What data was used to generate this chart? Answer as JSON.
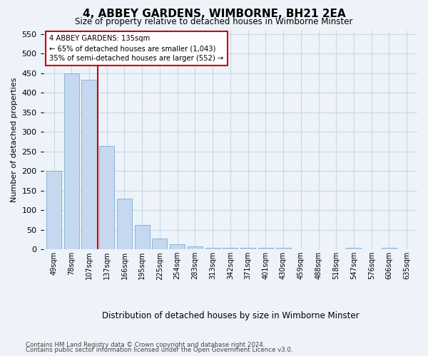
{
  "title": "4, ABBEY GARDENS, WIMBORNE, BH21 2EA",
  "subtitle": "Size of property relative to detached houses in Wimborne Minster",
  "xlabel": "Distribution of detached houses by size in Wimborne Minster",
  "ylabel": "Number of detached properties",
  "footer_line1": "Contains HM Land Registry data © Crown copyright and database right 2024.",
  "footer_line2": "Contains public sector information licensed under the Open Government Licence v3.0.",
  "categories": [
    "49sqm",
    "78sqm",
    "107sqm",
    "137sqm",
    "166sqm",
    "195sqm",
    "225sqm",
    "254sqm",
    "283sqm",
    "313sqm",
    "342sqm",
    "371sqm",
    "401sqm",
    "430sqm",
    "459sqm",
    "488sqm",
    "518sqm",
    "547sqm",
    "576sqm",
    "606sqm",
    "635sqm"
  ],
  "bar_heights": [
    200,
    450,
    433,
    265,
    130,
    62,
    28,
    14,
    8,
    5,
    5,
    5,
    5,
    4,
    0,
    0,
    0,
    4,
    0,
    4,
    0
  ],
  "bar_color": "#c5d8ef",
  "bar_edge_color": "#7aafd4",
  "grid_color": "#c8d8e8",
  "background_color": "#edf3f9",
  "annotation_line1": "4 ABBEY GARDENS: 135sqm",
  "annotation_line2": "← 65% of detached houses are smaller (1,043)",
  "annotation_line3": "35% of semi-detached houses are larger (552) →",
  "vline_color": "#cc0000",
  "property_size_idx": 3,
  "ylim_max": 560,
  "yticks": [
    0,
    50,
    100,
    150,
    200,
    250,
    300,
    350,
    400,
    450,
    500,
    550
  ]
}
